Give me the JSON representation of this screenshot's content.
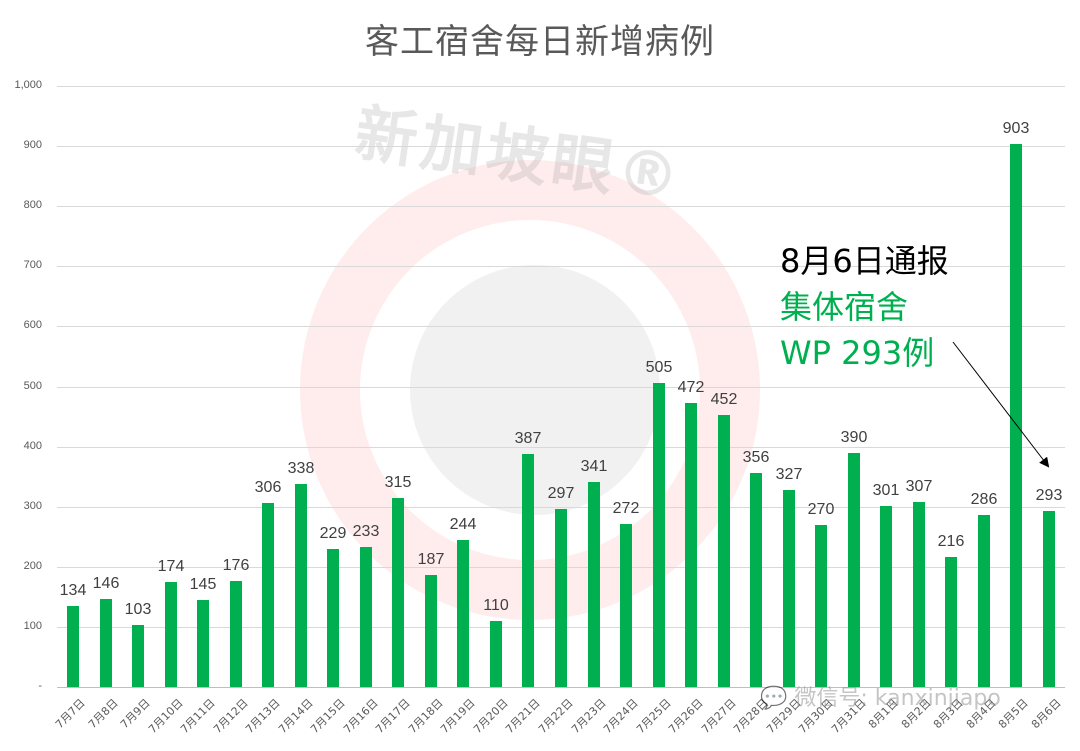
{
  "chart_data": {
    "type": "bar",
    "title": "客工宿舍每日新增病例",
    "xlabel": "",
    "ylabel": "",
    "ylim": [
      0,
      1000
    ],
    "yticks": [
      "-",
      "100",
      "200",
      "300",
      "400",
      "500",
      "600",
      "700",
      "800",
      "900",
      "1,000"
    ],
    "grid": true,
    "legend": null,
    "bar_color": "#00b050",
    "categories": [
      "7月7日",
      "7月8日",
      "7月9日",
      "7月10日",
      "7月11日",
      "7月12日",
      "7月13日",
      "7月14日",
      "7月15日",
      "7月16日",
      "7月17日",
      "7月18日",
      "7月19日",
      "7月20日",
      "7月21日",
      "7月22日",
      "7月23日",
      "7月24日",
      "7月25日",
      "7月26日",
      "7月27日",
      "7月28日",
      "7月29日",
      "7月30日",
      "7月31日",
      "8月1日",
      "8月2日",
      "8月3日",
      "8月4日",
      "8月5日",
      "8月6日"
    ],
    "values": [
      134,
      146,
      103,
      174,
      145,
      176,
      306,
      338,
      229,
      233,
      315,
      187,
      244,
      110,
      387,
      297,
      341,
      272,
      505,
      472,
      452,
      356,
      327,
      270,
      390,
      301,
      307,
      216,
      286,
      903,
      293
    ],
    "annotations": [
      {
        "text": "8月6日通报",
        "color": "#000000"
      },
      {
        "text": "集体宿舍",
        "color": "#00b050"
      },
      {
        "text": "WP 293例",
        "color": "#00b050"
      }
    ]
  },
  "watermark": {
    "brand": "新加坡眼®",
    "wechat": "微信号: kanxinjiapo"
  }
}
